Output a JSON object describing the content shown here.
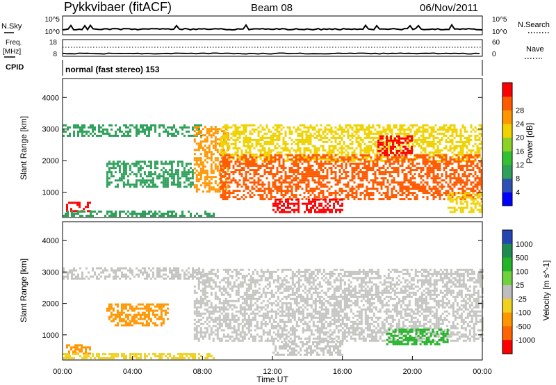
{
  "header": {
    "station": "Pykkvibaer (fitACF)",
    "beam": "Beam 08",
    "date": "06/Nov/2011"
  },
  "noise_panel": {
    "left_label": "N.Sky",
    "right_label": "N.Search",
    "left_ticks": [
      "10^5",
      "10^0"
    ],
    "right_ticks": [
      "10^5",
      "10^0"
    ]
  },
  "freq_panel": {
    "left_label_1": "Freq.",
    "left_label_2": "[MHz]",
    "right_label": "Nave",
    "left_ticks": [
      "18",
      "8"
    ],
    "right_ticks": [
      "60",
      "0"
    ]
  },
  "cpid": {
    "label": "CPID",
    "mode": "normal (fast stereo) 153"
  },
  "chart_data": [
    {
      "type": "heatmap",
      "title": "",
      "ylabel": "Slant Range [km]",
      "ylim": [
        200,
        4600
      ],
      "yticks": [
        "1000",
        "2000",
        "3000",
        "4000"
      ],
      "xlim_hours": [
        0,
        24
      ],
      "colorbar": {
        "label": "Power [dB]",
        "ticks": [
          "4",
          "8",
          "12",
          "16",
          "20",
          "24",
          "28"
        ],
        "range": [
          0,
          32
        ],
        "colors": [
          "#0000ff",
          "#2d50b4",
          "#2ea05a",
          "#34c033",
          "#8cd226",
          "#f0d200",
          "#ff9600",
          "#ff5a00",
          "#ff0000"
        ]
      },
      "regions": [
        {
          "t0": 0.0,
          "t1": 8.0,
          "r0": 2800,
          "r1": 3150,
          "value": 8
        },
        {
          "t0": 2.5,
          "t1": 7.5,
          "r0": 1200,
          "r1": 2000,
          "value": 9
        },
        {
          "t0": 0.2,
          "t1": 1.6,
          "r0": 430,
          "r1": 700,
          "value": 30
        },
        {
          "t0": 0.0,
          "t1": 8.6,
          "r0": 250,
          "r1": 420,
          "value": 8
        },
        {
          "t0": 7.5,
          "t1": 9.5,
          "r0": 1000,
          "r1": 3100,
          "value": 22
        },
        {
          "t0": 9.0,
          "t1": 24.0,
          "r0": 2000,
          "r1": 3150,
          "value": 18
        },
        {
          "t0": 9.0,
          "t1": 24.0,
          "r0": 800,
          "r1": 2200,
          "value": 28
        },
        {
          "t0": 12.0,
          "t1": 16.0,
          "r0": 400,
          "r1": 800,
          "value": 30
        },
        {
          "t0": 18.0,
          "t1": 20.0,
          "r0": 2200,
          "r1": 2800,
          "value": 30
        },
        {
          "t0": 22.0,
          "t1": 24.0,
          "r0": 400,
          "r1": 1000,
          "value": 20
        }
      ]
    },
    {
      "type": "heatmap",
      "title": "",
      "ylabel": "Slant Range [km]",
      "xlabel": "Time UT",
      "ylim": [
        200,
        4600
      ],
      "yticks": [
        "1000",
        "2000",
        "3000",
        "4000"
      ],
      "xticks": [
        "00:00",
        "04:00",
        "08:00",
        "12:00",
        "16:00",
        "20:00",
        "00:00"
      ],
      "xlim_hours": [
        0,
        24
      ],
      "colorbar": {
        "label": "Velocity [m s^-1]",
        "ticks": [
          "1000",
          "500",
          "100",
          "25",
          "-25",
          "-100",
          "-500",
          "-1000"
        ],
        "colors": [
          "#2346b4",
          "#1e8c50",
          "#23b428",
          "#6ed23c",
          "#bebebe",
          "#f0d21e",
          "#ff9600",
          "#ff6400",
          "#ff0000"
        ]
      },
      "regions": [
        {
          "t0": 0.0,
          "t1": 8.0,
          "r0": 2800,
          "r1": 3150,
          "value": "ground"
        },
        {
          "t0": 2.5,
          "t1": 6.0,
          "r0": 1300,
          "r1": 2000,
          "value": -200
        },
        {
          "t0": 0.2,
          "t1": 1.6,
          "r0": 430,
          "r1": 700,
          "value": -400
        },
        {
          "t0": 0.0,
          "t1": 8.6,
          "r0": 250,
          "r1": 420,
          "value": -60
        },
        {
          "t0": 7.5,
          "t1": 24.0,
          "r0": 800,
          "r1": 3100,
          "value": "ground"
        },
        {
          "t0": 18.5,
          "t1": 22.0,
          "r0": 700,
          "r1": 1200,
          "value": 300
        },
        {
          "t0": 12.0,
          "t1": 16.0,
          "r0": 400,
          "r1": 800,
          "value": "ground"
        }
      ]
    }
  ]
}
